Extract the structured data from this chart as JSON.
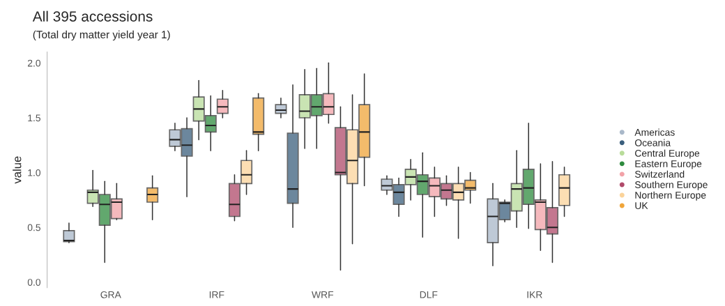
{
  "chart_data": {
    "type": "box",
    "title": "All 395 accessions",
    "subtitle": "(Total dry matter yield year 1)",
    "ylabel": "value",
    "categories": [
      "GRA",
      "IRF",
      "WRF",
      "DLF",
      "IKR"
    ],
    "ylim": [
      -0.05,
      2.1
    ],
    "yticks": [
      {
        "value": 0,
        "label": "0.0"
      },
      {
        "value": 0.5,
        "label": "0.5"
      },
      {
        "value": 1,
        "label": "1.0"
      },
      {
        "value": 1.5,
        "label": "1.5"
      },
      {
        "value": 2,
        "label": "2.0"
      }
    ],
    "grid": false,
    "legend": "right",
    "series": [
      {
        "name": "Americas",
        "color": "#a9b8c9",
        "boxes": [
          {
            "low": 0.36,
            "q1": 0.37,
            "median": 0.38,
            "q3": 0.47,
            "high": 0.54
          },
          {
            "low": 1.2,
            "q1": 1.24,
            "median": 1.3,
            "q3": 1.39,
            "high": 1.45
          },
          {
            "low": 1.5,
            "q1": 1.54,
            "median": 1.57,
            "q3": 1.62,
            "high": 1.68
          },
          {
            "low": 0.8,
            "q1": 0.84,
            "median": 0.88,
            "q3": 0.94,
            "high": 0.97
          },
          {
            "low": 0.15,
            "q1": 0.36,
            "median": 0.6,
            "q3": 0.76,
            "high": 0.9
          }
        ]
      },
      {
        "name": "Oceania",
        "color": "#3b5f7d",
        "boxes": [
          null,
          {
            "low": 0.78,
            "q1": 1.15,
            "median": 1.25,
            "q3": 1.4,
            "high": 1.5
          },
          {
            "low": 0.5,
            "q1": 0.72,
            "median": 0.85,
            "q3": 1.36,
            "high": 1.8
          },
          {
            "low": 0.6,
            "q1": 0.71,
            "median": 0.82,
            "q3": 0.89,
            "high": 0.95
          },
          {
            "low": 0.55,
            "q1": 0.57,
            "median": 0.72,
            "q3": 0.73,
            "high": 0.75
          }
        ]
      },
      {
        "name": "Central Europe",
        "color": "#b8dc9a",
        "boxes": [
          {
            "low": 0.69,
            "q1": 0.72,
            "median": 0.82,
            "q3": 0.84,
            "high": 1.02
          },
          {
            "low": 1.3,
            "q1": 1.47,
            "median": 1.58,
            "q3": 1.69,
            "high": 1.84
          },
          {
            "low": 1.22,
            "q1": 1.5,
            "median": 1.56,
            "q3": 1.71,
            "high": 1.94
          },
          {
            "low": 0.75,
            "q1": 0.89,
            "median": 0.96,
            "q3": 1.03,
            "high": 1.12
          },
          {
            "low": 0.5,
            "q1": 0.65,
            "median": 0.85,
            "q3": 0.9,
            "high": 1.2
          }
        ]
      },
      {
        "name": "Eastern Europe",
        "color": "#2e8b3e",
        "boxes": [
          {
            "low": 0.18,
            "q1": 0.52,
            "median": 0.71,
            "q3": 0.8,
            "high": 0.92
          },
          {
            "low": 1.2,
            "q1": 1.37,
            "median": 1.43,
            "q3": 1.52,
            "high": 1.7
          },
          {
            "low": 1.22,
            "q1": 1.52,
            "median": 1.6,
            "q3": 1.71,
            "high": 1.95
          },
          {
            "low": 0.41,
            "q1": 0.8,
            "median": 0.92,
            "q3": 0.98,
            "high": 1.18
          },
          {
            "low": 0.49,
            "q1": 0.71,
            "median": 0.86,
            "q3": 1.03,
            "high": 1.45
          }
        ]
      },
      {
        "name": "Switzerland",
        "color": "#f2a2a8",
        "boxes": [
          {
            "low": 0.57,
            "q1": 0.58,
            "median": 0.73,
            "q3": 0.76,
            "high": 0.9
          },
          {
            "low": 1.5,
            "q1": 1.54,
            "median": 1.6,
            "q3": 1.67,
            "high": 1.75
          },
          {
            "low": 1.45,
            "q1": 1.53,
            "median": 1.6,
            "q3": 1.72,
            "high": 2.0
          },
          {
            "low": 0.6,
            "q1": 0.78,
            "median": 0.88,
            "q3": 0.95,
            "high": 1.05
          },
          {
            "low": 0.29,
            "q1": 0.48,
            "median": 0.73,
            "q3": 0.75,
            "high": 1.08
          }
        ]
      },
      {
        "name": "Southern Europe",
        "color": "#b04a6a",
        "boxes": [
          null,
          {
            "low": 0.56,
            "q1": 0.6,
            "median": 0.71,
            "q3": 0.9,
            "high": 0.98
          },
          {
            "low": 0.11,
            "q1": 0.98,
            "median": 1.0,
            "q3": 1.41,
            "high": 1.6
          },
          {
            "low": 0.7,
            "q1": 0.76,
            "median": 0.84,
            "q3": 0.9,
            "high": 0.97
          },
          {
            "low": 0.18,
            "q1": 0.44,
            "median": 0.5,
            "q3": 0.68,
            "high": 1.1
          }
        ]
      },
      {
        "name": "Northern Europe",
        "color": "#fbd39a",
        "boxes": [
          null,
          {
            "low": 0.8,
            "q1": 0.9,
            "median": 0.98,
            "q3": 1.11,
            "high": 1.2
          },
          {
            "low": 0.35,
            "q1": 0.9,
            "median": 1.11,
            "q3": 1.39,
            "high": 1.71
          },
          {
            "low": 0.4,
            "q1": 0.75,
            "median": 0.82,
            "q3": 0.9,
            "high": 1.05
          },
          {
            "low": 0.6,
            "q1": 0.7,
            "median": 0.86,
            "q3": 0.98,
            "high": 1.05
          }
        ]
      },
      {
        "name": "UK",
        "color": "#f0a53a",
        "boxes": [
          {
            "low": 0.57,
            "q1": 0.73,
            "median": 0.8,
            "q3": 0.86,
            "high": 0.97
          },
          {
            "low": 1.2,
            "q1": 1.35,
            "median": 1.37,
            "q3": 1.68,
            "high": 1.72
          },
          {
            "low": 0.88,
            "q1": 1.14,
            "median": 1.37,
            "q3": 1.62,
            "high": 1.9
          },
          {
            "low": 0.72,
            "q1": 0.84,
            "median": 0.86,
            "q3": 0.93,
            "high": 1.0
          },
          null
        ]
      }
    ]
  }
}
